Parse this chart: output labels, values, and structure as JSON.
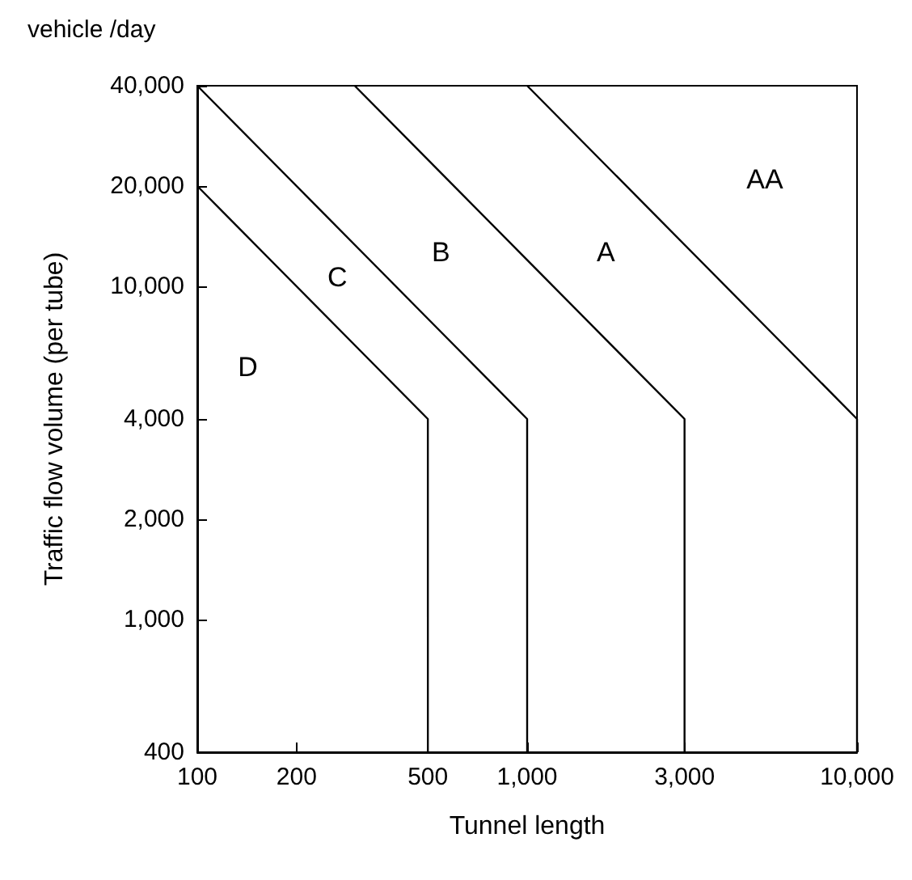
{
  "chart_data": {
    "type": "line",
    "title": "vehicle /day",
    "xlabel": "Tunnel length",
    "ylabel": "Traffic flow volume (per tube)",
    "log": "xy",
    "grid": false,
    "legend": false,
    "marker": "none",
    "line_style": "solid",
    "xlim": [
      100,
      10000
    ],
    "ylim": [
      400,
      40000
    ],
    "xticks": [
      {
        "value": 100,
        "label": "100"
      },
      {
        "value": 200,
        "label": "200"
      },
      {
        "value": 500,
        "label": "500"
      },
      {
        "value": 1000,
        "label": "1,000"
      },
      {
        "value": 3000,
        "label": "3,000"
      },
      {
        "value": 10000,
        "label": "10,000"
      }
    ],
    "yticks": [
      {
        "value": 400,
        "label": "400"
      },
      {
        "value": 1000,
        "label": "1,000"
      },
      {
        "value": 2000,
        "label": "2,000"
      },
      {
        "value": 4000,
        "label": "4,000"
      },
      {
        "value": 10000,
        "label": "10,000"
      },
      {
        "value": 20000,
        "label": "20,000"
      },
      {
        "value": 40000,
        "label": "40,000"
      }
    ],
    "series": [
      {
        "color": "#000000",
        "x": [
          100,
          500,
          500
        ],
        "values": [
          20000,
          4000,
          400
        ]
      },
      {
        "color": "#000000",
        "x": [
          100,
          1000,
          1000
        ],
        "values": [
          40000,
          4000,
          400
        ]
      },
      {
        "color": "#000000",
        "x": [
          300,
          3000,
          3000
        ],
        "values": [
          40000,
          4000,
          400
        ]
      },
      {
        "color": "#000000",
        "x": [
          1000,
          10000,
          10000
        ],
        "values": [
          40000,
          4000,
          400
        ]
      }
    ],
    "annotations": [
      "D",
      "C",
      "B",
      "A",
      "AA"
    ]
  }
}
